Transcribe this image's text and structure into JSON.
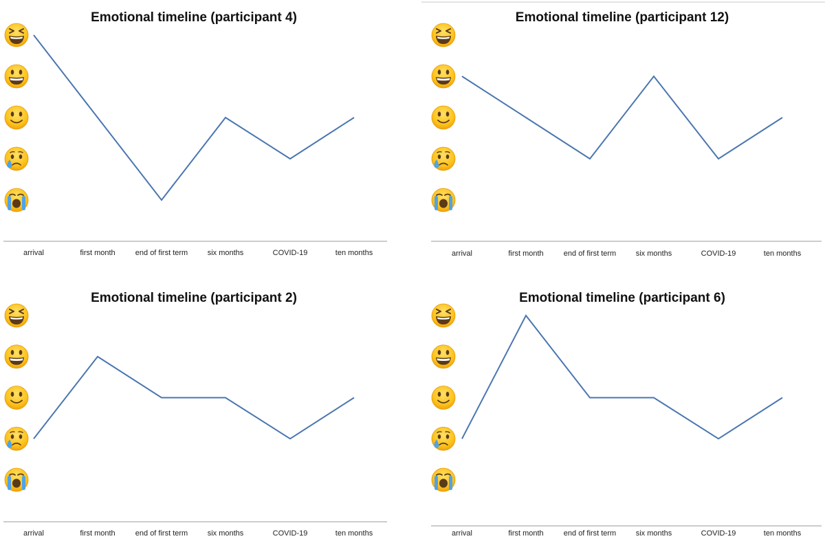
{
  "chart_data": [
    {
      "type": "line",
      "title": "Emotional timeline  (participant 4)",
      "categories": [
        "arrival",
        "first month",
        "end of first term",
        "six months",
        "COVID-19",
        "ten months"
      ],
      "y_levels": [
        {
          "value": 5,
          "icon": "laughing-squint-face-icon"
        },
        {
          "value": 4,
          "icon": "grinning-face-icon"
        },
        {
          "value": 3,
          "icon": "slightly-smiling-face-icon"
        },
        {
          "value": 2,
          "icon": "crying-face-icon"
        },
        {
          "value": 1,
          "icon": "loudly-crying-face-icon"
        }
      ],
      "ylim": [
        1,
        5
      ],
      "values": [
        5,
        3,
        1,
        3,
        2,
        3
      ],
      "line_color": "#4a76b0"
    },
    {
      "type": "line",
      "title": "Emotional timeline  (participant 12)",
      "categories": [
        "arrival",
        "first month",
        "end of first term",
        "six months",
        "COVID-19",
        "ten months"
      ],
      "y_levels": [
        {
          "value": 5,
          "icon": "laughing-squint-face-icon"
        },
        {
          "value": 4,
          "icon": "grinning-face-icon"
        },
        {
          "value": 3,
          "icon": "slightly-smiling-face-icon"
        },
        {
          "value": 2,
          "icon": "crying-face-icon"
        },
        {
          "value": 1,
          "icon": "loudly-crying-face-icon"
        }
      ],
      "ylim": [
        1,
        5
      ],
      "values": [
        4,
        3,
        2,
        4,
        2,
        3
      ],
      "line_color": "#4a76b0"
    },
    {
      "type": "line",
      "title": "Emotional timeline  (participant 2)",
      "categories": [
        "arrival",
        "first month",
        "end of first term",
        "six months",
        "COVID-19",
        "ten months"
      ],
      "y_levels": [
        {
          "value": 5,
          "icon": "laughing-squint-face-icon"
        },
        {
          "value": 4,
          "icon": "grinning-face-icon"
        },
        {
          "value": 3,
          "icon": "slightly-smiling-face-icon"
        },
        {
          "value": 2,
          "icon": "crying-face-icon"
        },
        {
          "value": 1,
          "icon": "loudly-crying-face-icon"
        }
      ],
      "ylim": [
        1,
        5
      ],
      "values": [
        2,
        4,
        3,
        3,
        2,
        3
      ],
      "line_color": "#4a76b0"
    },
    {
      "type": "line",
      "title": "Emotional timeline  (participant 6)",
      "categories": [
        "arrival",
        "first month",
        "end of first term",
        "six months",
        "COVID-19",
        "ten months"
      ],
      "y_levels": [
        {
          "value": 5,
          "icon": "laughing-squint-face-icon"
        },
        {
          "value": 4,
          "icon": "grinning-face-icon"
        },
        {
          "value": 3,
          "icon": "slightly-smiling-face-icon"
        },
        {
          "value": 2,
          "icon": "crying-face-icon"
        },
        {
          "value": 1,
          "icon": "loudly-crying-face-icon"
        }
      ],
      "ylim": [
        1,
        5
      ],
      "values": [
        2,
        5,
        3,
        3,
        2,
        3
      ],
      "line_color": "#4a76b0"
    }
  ]
}
